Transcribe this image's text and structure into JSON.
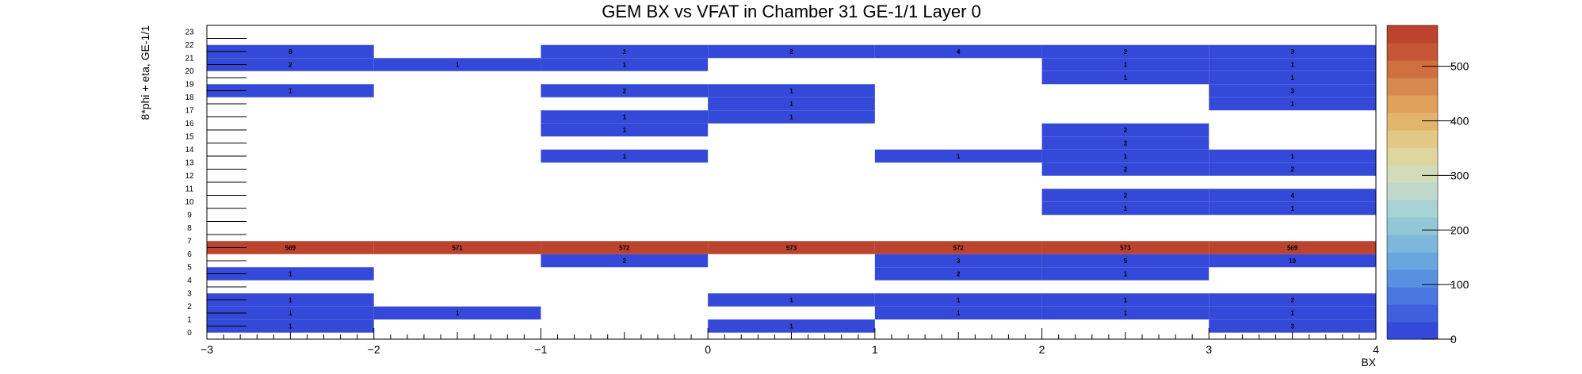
{
  "chart_data": {
    "type": "heatmap",
    "title": "GEM BX vs VFAT in Chamber 31 GE-1/1 Layer 0",
    "xlabel": "BX",
    "ylabel": "8*phi + eta, GE-1/1",
    "xlim": [
      -3,
      4
    ],
    "ylim": [
      0,
      24
    ],
    "x_ticks": [
      "−3",
      "−2",
      "−1",
      "0",
      "1",
      "2",
      "3",
      "4"
    ],
    "y_ticks": [
      "0",
      "1",
      "2",
      "3",
      "4",
      "5",
      "6",
      "7",
      "8",
      "9",
      "10",
      "11",
      "12",
      "13",
      "14",
      "15",
      "16",
      "17",
      "18",
      "19",
      "20",
      "21",
      "22",
      "23"
    ],
    "x_bins": [
      -2.5,
      -1.5,
      -0.5,
      0.5,
      1.5,
      2.5,
      3.5
    ],
    "z_range": [
      0,
      575
    ],
    "colorbar_ticks": [
      {
        "value": 0,
        "label": "0"
      },
      {
        "value": 100,
        "label": "100"
      },
      {
        "value": 200,
        "label": "200"
      },
      {
        "value": 300,
        "label": "300"
      },
      {
        "value": 400,
        "label": "400"
      },
      {
        "value": 500,
        "label": "500"
      }
    ],
    "cells": [
      {
        "x": -2.5,
        "y": 22,
        "v": 8
      },
      {
        "x": -0.5,
        "y": 22,
        "v": 1
      },
      {
        "x": 0.5,
        "y": 22,
        "v": 2
      },
      {
        "x": 1.5,
        "y": 22,
        "v": 4
      },
      {
        "x": 2.5,
        "y": 22,
        "v": 2
      },
      {
        "x": 3.5,
        "y": 22,
        "v": 3
      },
      {
        "x": -2.5,
        "y": 21,
        "v": 2
      },
      {
        "x": -1.5,
        "y": 21,
        "v": 1
      },
      {
        "x": -0.5,
        "y": 21,
        "v": 1
      },
      {
        "x": 2.5,
        "y": 21,
        "v": 1
      },
      {
        "x": 3.5,
        "y": 21,
        "v": 1
      },
      {
        "x": 2.5,
        "y": 20,
        "v": 1
      },
      {
        "x": 3.5,
        "y": 20,
        "v": 1
      },
      {
        "x": -2.5,
        "y": 19,
        "v": 1
      },
      {
        "x": -0.5,
        "y": 19,
        "v": 2
      },
      {
        "x": 0.5,
        "y": 19,
        "v": 1
      },
      {
        "x": 3.5,
        "y": 19,
        "v": 3
      },
      {
        "x": 0.5,
        "y": 18,
        "v": 1
      },
      {
        "x": 3.5,
        "y": 18,
        "v": 1
      },
      {
        "x": -0.5,
        "y": 17,
        "v": 1
      },
      {
        "x": 0.5,
        "y": 17,
        "v": 1
      },
      {
        "x": -0.5,
        "y": 16,
        "v": 1
      },
      {
        "x": 2.5,
        "y": 16,
        "v": 2
      },
      {
        "x": 2.5,
        "y": 15,
        "v": 2
      },
      {
        "x": -0.5,
        "y": 14,
        "v": 1
      },
      {
        "x": 1.5,
        "y": 14,
        "v": 1
      },
      {
        "x": 2.5,
        "y": 14,
        "v": 1
      },
      {
        "x": 3.5,
        "y": 14,
        "v": 1
      },
      {
        "x": 2.5,
        "y": 13,
        "v": 2
      },
      {
        "x": 3.5,
        "y": 13,
        "v": 2
      },
      {
        "x": 2.5,
        "y": 11,
        "v": 2
      },
      {
        "x": 3.5,
        "y": 11,
        "v": 4
      },
      {
        "x": 2.5,
        "y": 10,
        "v": 1
      },
      {
        "x": 3.5,
        "y": 10,
        "v": 1
      },
      {
        "x": -2.5,
        "y": 7,
        "v": 569
      },
      {
        "x": -1.5,
        "y": 7,
        "v": 571
      },
      {
        "x": -0.5,
        "y": 7,
        "v": 572
      },
      {
        "x": 0.5,
        "y": 7,
        "v": 573
      },
      {
        "x": 1.5,
        "y": 7,
        "v": 572
      },
      {
        "x": 2.5,
        "y": 7,
        "v": 573
      },
      {
        "x": 3.5,
        "y": 7,
        "v": 569
      },
      {
        "x": -0.5,
        "y": 6,
        "v": 2
      },
      {
        "x": 1.5,
        "y": 6,
        "v": 3
      },
      {
        "x": 2.5,
        "y": 6,
        "v": 5
      },
      {
        "x": 3.5,
        "y": 6,
        "v": 10
      },
      {
        "x": -2.5,
        "y": 5,
        "v": 1
      },
      {
        "x": 1.5,
        "y": 5,
        "v": 2
      },
      {
        "x": 2.5,
        "y": 5,
        "v": 1
      },
      {
        "x": -2.5,
        "y": 3,
        "v": 1
      },
      {
        "x": 0.5,
        "y": 3,
        "v": 1
      },
      {
        "x": 1.5,
        "y": 3,
        "v": 1
      },
      {
        "x": 2.5,
        "y": 3,
        "v": 1
      },
      {
        "x": 3.5,
        "y": 3,
        "v": 2
      },
      {
        "x": -2.5,
        "y": 2,
        "v": 1
      },
      {
        "x": -1.5,
        "y": 2,
        "v": 1
      },
      {
        "x": 1.5,
        "y": 2,
        "v": 1
      },
      {
        "x": 2.5,
        "y": 2,
        "v": 1
      },
      {
        "x": 3.5,
        "y": 2,
        "v": 1
      },
      {
        "x": -2.5,
        "y": 1,
        "v": 1
      },
      {
        "x": 0.5,
        "y": 1,
        "v": 1
      },
      {
        "x": 3.5,
        "y": 1,
        "v": 3
      }
    ],
    "colors": {
      "low": "#2f45e0",
      "high": "#b9402a",
      "palette": [
        "#3549d8",
        "#3f5fdc",
        "#4a77df",
        "#5990e0",
        "#6aa6de",
        "#7db8dc",
        "#92c7d8",
        "#a8d2d3",
        "#bfdacb",
        "#d3dcb8",
        "#dfd59e",
        "#e3c784",
        "#e2b56c",
        "#deA05b",
        "#d8894d",
        "#cf7040",
        "#c65736",
        "#bc432d"
      ],
      "frame": "#000000"
    },
    "grid": false,
    "legend": "colorbar-right"
  }
}
